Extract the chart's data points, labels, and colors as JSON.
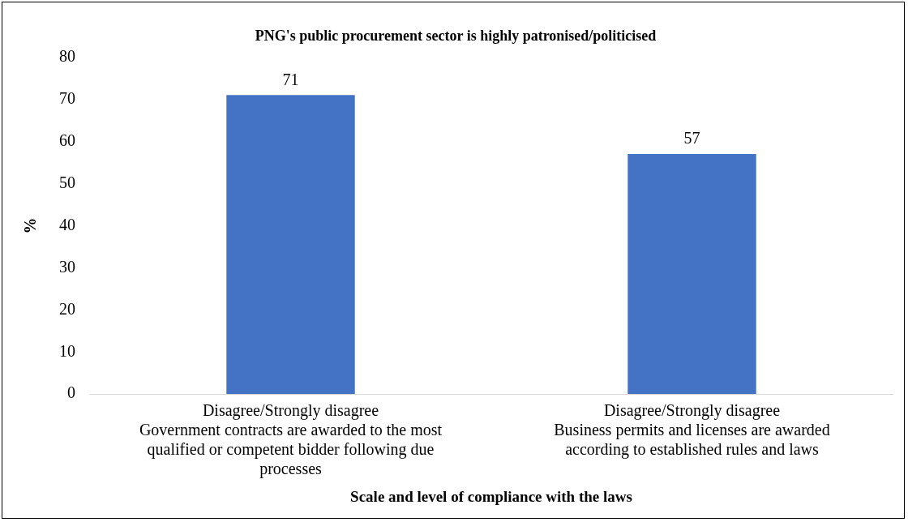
{
  "chart_data": {
    "type": "bar",
    "title": "PNG's public procurement sector is highly patronised/politicised",
    "xlabel": "Scale and level of compliance with the laws",
    "ylabel": "%",
    "categories": [
      "Disagree/Strongly disagree\nGovernment contracts are awarded to the most qualified or competent bidder following due processes",
      "Disagree/Strongly disagree\nBusiness permits and licenses are awarded according to established rules and laws"
    ],
    "values": [
      71,
      57
    ],
    "color": "#4472c4",
    "ylim": [
      0,
      80
    ],
    "yticks": [
      0,
      10,
      20,
      30,
      40,
      50,
      60,
      70,
      80
    ],
    "grid": false,
    "data_labels": true
  }
}
